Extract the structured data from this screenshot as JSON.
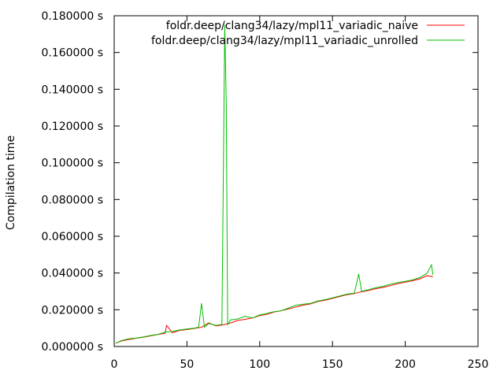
{
  "chart_data": {
    "type": "line",
    "title": "",
    "xlabel": "",
    "ylabel": "Compilation time",
    "xlim": [
      0,
      250
    ],
    "ylim": [
      0,
      0.18
    ],
    "grid": false,
    "legend_position": "top-right",
    "x_ticks": [
      {
        "value": 0,
        "label": "0"
      },
      {
        "value": 50,
        "label": "50"
      },
      {
        "value": 100,
        "label": "100"
      },
      {
        "value": 150,
        "label": "150"
      },
      {
        "value": 200,
        "label": "200"
      },
      {
        "value": 250,
        "label": "250"
      }
    ],
    "y_ticks": [
      {
        "value": 0.0,
        "label": "0.000000 s"
      },
      {
        "value": 0.02,
        "label": "0.020000 s"
      },
      {
        "value": 0.04,
        "label": "0.040000 s"
      },
      {
        "value": 0.06,
        "label": "0.060000 s"
      },
      {
        "value": 0.08,
        "label": "0.080000 s"
      },
      {
        "value": 0.1,
        "label": "0.100000 s"
      },
      {
        "value": 0.12,
        "label": "0.120000 s"
      },
      {
        "value": 0.14,
        "label": "0.140000 s"
      },
      {
        "value": 0.16,
        "label": "0.160000 s"
      },
      {
        "value": 0.18,
        "label": "0.180000 s"
      }
    ],
    "series": [
      {
        "name": "foldr.deep/clang34/lazy/mpl11_variadic_naive",
        "color": "#ff0000",
        "x": [
          1,
          5,
          10,
          15,
          20,
          25,
          30,
          35,
          36,
          40,
          45,
          50,
          55,
          60,
          65,
          70,
          75,
          80,
          85,
          90,
          95,
          100,
          105,
          110,
          115,
          120,
          125,
          130,
          135,
          140,
          145,
          150,
          155,
          160,
          165,
          170,
          175,
          180,
          185,
          190,
          195,
          200,
          205,
          210,
          215,
          219
        ],
        "y": [
          0.0018,
          0.003,
          0.0038,
          0.0045,
          0.005,
          0.0058,
          0.0065,
          0.0072,
          0.0115,
          0.0075,
          0.0088,
          0.0092,
          0.0098,
          0.0105,
          0.0128,
          0.0112,
          0.0118,
          0.0128,
          0.0142,
          0.0148,
          0.0155,
          0.0168,
          0.0175,
          0.0188,
          0.0195,
          0.0205,
          0.0215,
          0.0225,
          0.0232,
          0.0245,
          0.0252,
          0.0262,
          0.0272,
          0.0282,
          0.0288,
          0.0298,
          0.0305,
          0.0315,
          0.0322,
          0.0332,
          0.0342,
          0.035,
          0.0358,
          0.0368,
          0.0385,
          0.038
        ]
      },
      {
        "name": "foldr.deep/clang34/lazy/mpl11_variadic_unrolled",
        "color": "#00c000",
        "x": [
          1,
          5,
          10,
          15,
          20,
          25,
          30,
          35,
          40,
          45,
          50,
          55,
          58,
          60,
          62,
          65,
          70,
          74,
          75,
          76,
          77,
          78,
          80,
          85,
          90,
          95,
          100,
          105,
          110,
          115,
          120,
          125,
          130,
          135,
          140,
          145,
          150,
          155,
          160,
          165,
          168,
          170,
          175,
          180,
          185,
          190,
          195,
          200,
          205,
          210,
          215,
          218,
          219
        ],
        "y": [
          0.0018,
          0.0032,
          0.0042,
          0.0046,
          0.0052,
          0.006,
          0.0066,
          0.0078,
          0.0082,
          0.009,
          0.0095,
          0.01,
          0.0105,
          0.0235,
          0.0105,
          0.0125,
          0.0115,
          0.012,
          0.093,
          0.175,
          0.133,
          0.012,
          0.0145,
          0.015,
          0.0165,
          0.0155,
          0.0172,
          0.018,
          0.019,
          0.0195,
          0.021,
          0.0225,
          0.023,
          0.0235,
          0.0248,
          0.0255,
          0.0265,
          0.0275,
          0.0285,
          0.029,
          0.0395,
          0.03,
          0.031,
          0.032,
          0.0328,
          0.034,
          0.0348,
          0.0355,
          0.0362,
          0.0375,
          0.0398,
          0.0445,
          0.039
        ]
      }
    ]
  }
}
